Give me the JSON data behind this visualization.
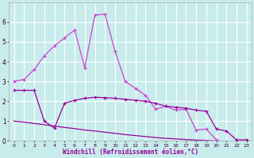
{
  "xlabel": "Windchill (Refroidissement éolien,°C)",
  "bg_color": "#c8ecec",
  "grid_color": "#ffffff",
  "line_color_dark": "#990099",
  "line_color_bright": "#cc44cc",
  "xlim": [
    -0.5,
    23.5
  ],
  "ylim": [
    0,
    7
  ],
  "yticks": [
    0,
    1,
    2,
    3,
    4,
    5,
    6
  ],
  "xticks": [
    0,
    1,
    2,
    3,
    4,
    5,
    6,
    7,
    8,
    9,
    10,
    11,
    12,
    13,
    14,
    15,
    16,
    17,
    18,
    19,
    20,
    21,
    22,
    23
  ],
  "s1_x": [
    0,
    1,
    2,
    3,
    4,
    5,
    6,
    7,
    8,
    9,
    10,
    11,
    12,
    13,
    14,
    15,
    16,
    17,
    18,
    19,
    20
  ],
  "s1_y": [
    3.0,
    3.1,
    3.6,
    4.3,
    4.8,
    5.2,
    5.6,
    3.7,
    6.35,
    6.4,
    4.5,
    3.0,
    2.65,
    2.3,
    1.6,
    1.75,
    1.55,
    1.6,
    0.55,
    0.6,
    0.05
  ],
  "s2_x": [
    0,
    1,
    2,
    3,
    4,
    5,
    6,
    7,
    8,
    9,
    10,
    11,
    12,
    13,
    14,
    15,
    16,
    17,
    18,
    19,
    20,
    21,
    22,
    23
  ],
  "s2_y": [
    2.55,
    2.55,
    2.55,
    1.0,
    0.65,
    1.9,
    2.05,
    2.15,
    2.2,
    2.18,
    2.15,
    2.1,
    2.05,
    2.0,
    1.9,
    1.75,
    1.7,
    1.65,
    1.55,
    1.5,
    0.6,
    0.5,
    0.05,
    0.05
  ],
  "s3_x": [
    0,
    1,
    2,
    3,
    4,
    5,
    6,
    7,
    8,
    9,
    10,
    11,
    12,
    13,
    14,
    15,
    16,
    17,
    18,
    19,
    20,
    21,
    22,
    23
  ],
  "s3_y": [
    1.0,
    0.95,
    0.88,
    0.82,
    0.75,
    0.68,
    0.62,
    0.55,
    0.5,
    0.44,
    0.38,
    0.32,
    0.27,
    0.22,
    0.17,
    0.13,
    0.1,
    0.07,
    0.04,
    0.02,
    0.0,
    -0.02,
    -0.04,
    -0.05
  ]
}
